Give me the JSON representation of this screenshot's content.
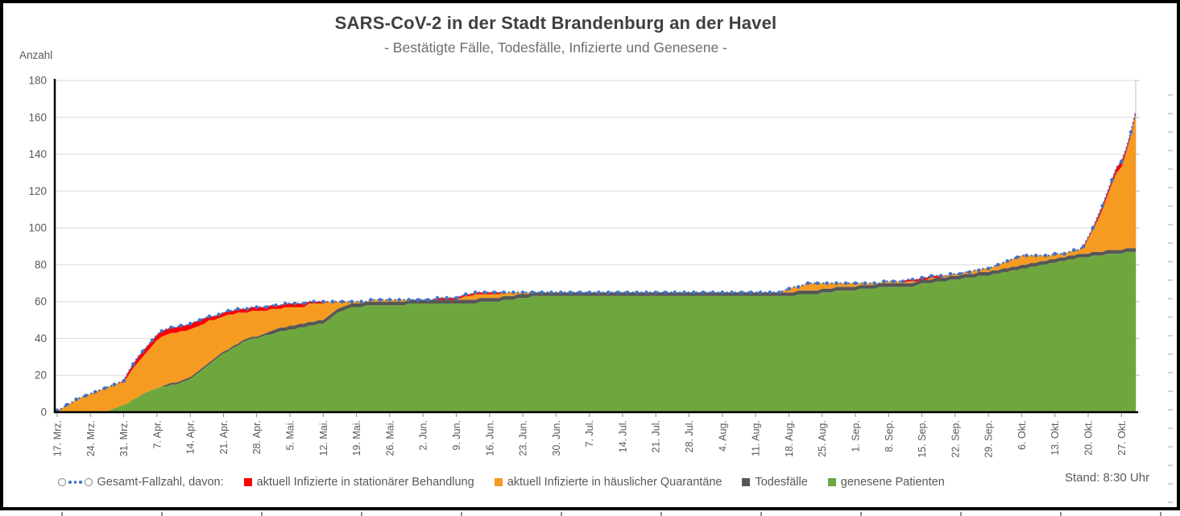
{
  "header": {
    "title": "SARS-CoV-2 in der Stadt Brandenburg an der Havel",
    "subtitle": "- Bestätigte Fälle, Todesfälle, Infizierte und Genesene -"
  },
  "status": {
    "stand": "Stand: 8:30 Uhr"
  },
  "legend": {
    "items": [
      {
        "label": "Gesamt-Fallzahl, davon:",
        "marker": "dotted-line-with-circles",
        "color": "#4472C4"
      },
      {
        "label": "aktuell Infizierte in stationärer Behandlung",
        "marker": "square",
        "color": "#FF0000"
      },
      {
        "label": "aktuell Infizierte in häuslicher Quarantäne",
        "marker": "square",
        "color": "#F59B22"
      },
      {
        "label": "Todesfälle",
        "marker": "square",
        "color": "#575756"
      },
      {
        "label": "genesene Patienten",
        "marker": "square",
        "color": "#6EA73E"
      }
    ]
  },
  "chart_data": {
    "type": "area",
    "stacked": true,
    "title": "SARS-CoV-2 in der Stadt Brandenburg an der Havel",
    "subtitle": "- Bestätigte Fälle, Todesfälle, Infizierte und Genesene -",
    "ylabel": "Anzahl",
    "ylim": [
      0,
      180
    ],
    "y_ticks": [
      0,
      20,
      40,
      60,
      80,
      100,
      120,
      140,
      160,
      180
    ],
    "grid": "horizontal",
    "legend_position": "bottom",
    "x_tick_labels": [
      "17. Mrz.",
      "24. Mrz.",
      "31. Mrz.",
      "7. Apr.",
      "14. Apr.",
      "21. Apr.",
      "28. Apr.",
      "5. Mai.",
      "12. Mai.",
      "19. Mai.",
      "26. Mai.",
      "2. Jun.",
      "9. Jun.",
      "16. Jun.",
      "23. Jun.",
      "30. Jun.",
      "7. Jul.",
      "14. Jul.",
      "21. Jul.",
      "28. Jul.",
      "4. Aug.",
      "11. Aug.",
      "18. Aug.",
      "25. Aug.",
      "1. Sep.",
      "8. Sep.",
      "15. Sep.",
      "22. Sep.",
      "29. Sep.",
      "6. Okt.",
      "13. Okt.",
      "20. Okt.",
      "27. Okt."
    ],
    "x_tick_day_offsets": [
      0,
      7,
      14,
      21,
      28,
      35,
      42,
      49,
      56,
      63,
      70,
      77,
      84,
      91,
      98,
      105,
      112,
      119,
      126,
      133,
      140,
      147,
      154,
      161,
      168,
      175,
      182,
      189,
      196,
      203,
      210,
      217,
      224
    ],
    "series": [
      {
        "name": "genesene Patienten",
        "color": "#6EA73E",
        "values": [
          0,
          0,
          0,
          0,
          0,
          0,
          0,
          0,
          0,
          0,
          0,
          1,
          2,
          3,
          4,
          5,
          7,
          8,
          10,
          11,
          12,
          13,
          14,
          14,
          15,
          15,
          16,
          17,
          18,
          20,
          22,
          24,
          26,
          28,
          30,
          32,
          33,
          35,
          36,
          38,
          39,
          40,
          40,
          41,
          42,
          42,
          43,
          44,
          44,
          45,
          45,
          46,
          46,
          47,
          47,
          48,
          48,
          50,
          52,
          54,
          55,
          56,
          57,
          57,
          57,
          58,
          58,
          58,
          58,
          58,
          58,
          58,
          58,
          58,
          59,
          59,
          59,
          59,
          59,
          59,
          59,
          59,
          59,
          59,
          59,
          59,
          59,
          59,
          59,
          60,
          60,
          60,
          60,
          60,
          61,
          61,
          61,
          62,
          62,
          62,
          63,
          63,
          63,
          63,
          63,
          63,
          63,
          63,
          63,
          63,
          63,
          63,
          63,
          63,
          63,
          63,
          63,
          63,
          63,
          63,
          63,
          63,
          63,
          63,
          63,
          63,
          63,
          63,
          63,
          63,
          63,
          63,
          63,
          63,
          63,
          63,
          63,
          63,
          63,
          63,
          63,
          63,
          63,
          63,
          63,
          63,
          63,
          63,
          63,
          63,
          63,
          63,
          63,
          63,
          63,
          63,
          64,
          64,
          64,
          64,
          64,
          65,
          65,
          65,
          66,
          66,
          66,
          66,
          66,
          67,
          67,
          67,
          67,
          68,
          68,
          68,
          68,
          68,
          68,
          68,
          68,
          69,
          70,
          70,
          70,
          71,
          71,
          71,
          72,
          72,
          72,
          73,
          73,
          73,
          74,
          74,
          74,
          75,
          75,
          76,
          76,
          77,
          77,
          78,
          78,
          79,
          79,
          80,
          80,
          81,
          81,
          82,
          82,
          83,
          83,
          84,
          84,
          84,
          85,
          85,
          85,
          86,
          86,
          86,
          86,
          87,
          87,
          87
        ]
      },
      {
        "name": "Todesfälle",
        "color": "#575756",
        "values": [
          0,
          0,
          0,
          0,
          0,
          0,
          0,
          0,
          0,
          0,
          0,
          0,
          0,
          0,
          0,
          0,
          0,
          0,
          0,
          0,
          0,
          0,
          0,
          1,
          1,
          1,
          1,
          1,
          1,
          1,
          1,
          1,
          1,
          1,
          1,
          1,
          1,
          1,
          1,
          1,
          1,
          1,
          1,
          1,
          1,
          2,
          2,
          2,
          2,
          2,
          2,
          2,
          2,
          2,
          2,
          2,
          2,
          2,
          2,
          2,
          2,
          2,
          2,
          2,
          2,
          2,
          2,
          2,
          2,
          2,
          2,
          2,
          2,
          2,
          2,
          2,
          2,
          2,
          2,
          2,
          2,
          2,
          2,
          2,
          2,
          2,
          2,
          2,
          2,
          2,
          2,
          2,
          2,
          2,
          2,
          2,
          2,
          2,
          2,
          2,
          2,
          2,
          2,
          2,
          2,
          2,
          2,
          2,
          2,
          2,
          2,
          2,
          2,
          2,
          2,
          2,
          2,
          2,
          2,
          2,
          2,
          2,
          2,
          2,
          2,
          2,
          2,
          2,
          2,
          2,
          2,
          2,
          2,
          2,
          2,
          2,
          2,
          2,
          2,
          2,
          2,
          2,
          2,
          2,
          2,
          2,
          2,
          2,
          2,
          2,
          2,
          2,
          2,
          2,
          2,
          2,
          2,
          2,
          2,
          2,
          2,
          2,
          2,
          2,
          2,
          2,
          2,
          2,
          2,
          2,
          2,
          2,
          2,
          2,
          2,
          2,
          2,
          2,
          2,
          2,
          2,
          2,
          2,
          2,
          2,
          2,
          2,
          2,
          2,
          2,
          2,
          2,
          2,
          2,
          2,
          2,
          2,
          2,
          2,
          2,
          2,
          2,
          2,
          2,
          2,
          2,
          2,
          2,
          2,
          2,
          2,
          2,
          2,
          2,
          2,
          2,
          2,
          2,
          2,
          2,
          2,
          2,
          2,
          2,
          2,
          2,
          2,
          2
        ]
      },
      {
        "name": "aktuell Infizierte in häuslicher Quarantäne",
        "color": "#F59B22",
        "values": [
          1,
          2,
          4,
          5,
          7,
          8,
          9,
          10,
          11,
          12,
          13,
          13,
          13,
          13,
          12,
          15,
          17,
          19,
          20,
          22,
          24,
          26,
          27,
          27,
          27,
          27,
          27,
          26,
          26,
          25,
          24,
          23,
          23,
          21,
          20,
          19,
          19,
          17,
          17,
          15,
          14,
          14,
          14,
          13,
          12,
          12,
          11,
          10,
          11,
          10,
          10,
          9,
          9,
          10,
          10,
          9,
          9,
          8,
          6,
          4,
          3,
          2,
          1,
          1,
          1,
          0,
          1,
          1,
          1,
          1,
          1,
          1,
          1,
          1,
          0,
          0,
          0,
          0,
          0,
          0,
          0,
          0,
          0,
          0,
          0,
          1,
          2,
          2,
          3,
          2,
          2,
          2,
          2,
          2,
          2,
          2,
          2,
          1,
          1,
          1,
          0,
          0,
          0,
          0,
          0,
          0,
          0,
          0,
          0,
          0,
          0,
          0,
          0,
          0,
          0,
          0,
          0,
          0,
          0,
          0,
          0,
          0,
          0,
          0,
          0,
          0,
          0,
          0,
          0,
          0,
          0,
          0,
          0,
          0,
          0,
          0,
          0,
          0,
          0,
          0,
          0,
          0,
          0,
          0,
          0,
          0,
          0,
          0,
          0,
          0,
          0,
          0,
          0,
          1,
          2,
          3,
          2,
          3,
          4,
          4,
          4,
          3,
          3,
          3,
          2,
          2,
          2,
          2,
          2,
          1,
          1,
          1,
          1,
          0,
          1,
          1,
          1,
          1,
          0,
          1,
          1,
          0,
          0,
          0,
          1,
          0,
          0,
          1,
          1,
          1,
          1,
          1,
          1,
          2,
          1,
          2,
          2,
          2,
          3,
          3,
          4,
          4,
          5,
          5,
          5,
          4,
          4,
          3,
          3,
          2,
          3,
          2,
          2,
          2,
          3,
          2,
          3,
          8,
          12,
          17,
          23,
          29,
          36,
          42,
          45,
          52,
          61,
          73
        ]
      },
      {
        "name": "aktuell Infizierte in stationärer Behandlung",
        "color": "#FF0000",
        "values": [
          0,
          0,
          0,
          0,
          0,
          0,
          0,
          0,
          0,
          0,
          0,
          0,
          0,
          0,
          1,
          2,
          2,
          3,
          3,
          3,
          3,
          3,
          3,
          3,
          3,
          3,
          3,
          3,
          3,
          3,
          3,
          3,
          2,
          2,
          2,
          2,
          2,
          2,
          2,
          2,
          2,
          2,
          2,
          2,
          2,
          2,
          2,
          2,
          2,
          2,
          2,
          2,
          2,
          1,
          1,
          1,
          1,
          0,
          0,
          0,
          0,
          0,
          0,
          0,
          0,
          0,
          0,
          0,
          0,
          0,
          0,
          0,
          0,
          0,
          0,
          0,
          0,
          0,
          0,
          0,
          1,
          1,
          1,
          1,
          1,
          1,
          1,
          1,
          1,
          1,
          1,
          1,
          1,
          1,
          0,
          0,
          0,
          0,
          0,
          0,
          0,
          0,
          0,
          0,
          0,
          0,
          0,
          0,
          0,
          0,
          0,
          0,
          0,
          0,
          0,
          0,
          0,
          0,
          0,
          0,
          0,
          0,
          0,
          0,
          0,
          0,
          0,
          0,
          0,
          0,
          0,
          0,
          0,
          0,
          0,
          0,
          0,
          0,
          0,
          0,
          0,
          0,
          0,
          0,
          0,
          0,
          0,
          0,
          0,
          0,
          0,
          0,
          0,
          0,
          0,
          0,
          0,
          0,
          0,
          0,
          0,
          0,
          0,
          0,
          0,
          0,
          0,
          0,
          0,
          0,
          0,
          0,
          0,
          0,
          0,
          0,
          0,
          0,
          1,
          1,
          1,
          1,
          1,
          1,
          1,
          1,
          1,
          0,
          0,
          0,
          0,
          0,
          0,
          0,
          0,
          0,
          0,
          0,
          0,
          0,
          0,
          0,
          0,
          0,
          0,
          0,
          0,
          0,
          0,
          0,
          0,
          0,
          0,
          0,
          0,
          0,
          1,
          1,
          1,
          2,
          2,
          2,
          2,
          3,
          3,
          2,
          2,
          1
        ]
      }
    ],
    "total_line": {
      "name": "Gesamt-Fallzahl, davon:",
      "color": "#4472C4",
      "style": "dotted-with-markers",
      "values": [
        1,
        2,
        4,
        5,
        7,
        8,
        9,
        10,
        11,
        12,
        13,
        14,
        15,
        16,
        17,
        22,
        26,
        30,
        33,
        36,
        39,
        42,
        44,
        45,
        46,
        46,
        47,
        47,
        48,
        49,
        50,
        51,
        52,
        52,
        53,
        54,
        55,
        55,
        56,
        56,
        56,
        57,
        57,
        57,
        57,
        58,
        58,
        58,
        59,
        59,
        59,
        59,
        59,
        60,
        60,
        60,
        60,
        60,
        60,
        60,
        60,
        60,
        60,
        60,
        60,
        60,
        61,
        61,
        61,
        61,
        61,
        61,
        61,
        61,
        61,
        61,
        61,
        61,
        61,
        61,
        62,
        62,
        62,
        62,
        62,
        63,
        64,
        64,
        65,
        65,
        65,
        65,
        65,
        65,
        65,
        65,
        65,
        65,
        65,
        65,
        65,
        65,
        65,
        65,
        65,
        65,
        65,
        65,
        65,
        65,
        65,
        65,
        65,
        65,
        65,
        65,
        65,
        65,
        65,
        65,
        65,
        65,
        65,
        65,
        65,
        65,
        65,
        65,
        65,
        65,
        65,
        65,
        65,
        65,
        65,
        65,
        65,
        65,
        65,
        65,
        65,
        65,
        65,
        65,
        65,
        65,
        65,
        65,
        65,
        65,
        65,
        65,
        65,
        66,
        67,
        68,
        68,
        69,
        70,
        70,
        70,
        70,
        70,
        70,
        70,
        70,
        70,
        70,
        70,
        70,
        70,
        70,
        70,
        70,
        71,
        71,
        71,
        71,
        71,
        72,
        72,
        72,
        73,
        73,
        74,
        74,
        74,
        74,
        75,
        75,
        75,
        76,
        76,
        77,
        77,
        78,
        78,
        79,
        80,
        81,
        82,
        83,
        84,
        85,
        85,
        85,
        85,
        85,
        85,
        85,
        86,
        86,
        86,
        87,
        88,
        88,
        90,
        95,
        100,
        106,
        112,
        119,
        126,
        133,
        136,
        143,
        152,
        163
      ]
    }
  }
}
